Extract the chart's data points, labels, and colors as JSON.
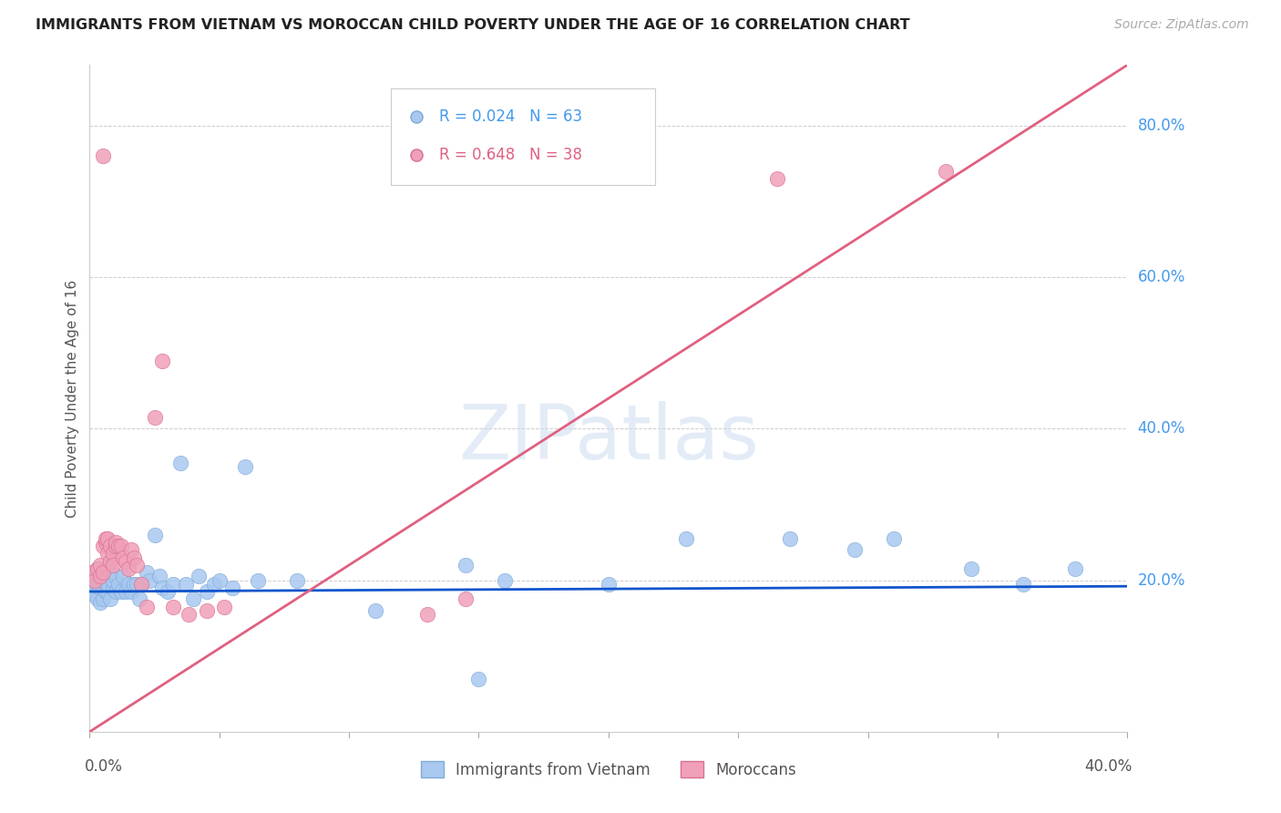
{
  "title": "IMMIGRANTS FROM VIETNAM VS MOROCCAN CHILD POVERTY UNDER THE AGE OF 16 CORRELATION CHART",
  "source": "Source: ZipAtlas.com",
  "ylabel": "Child Poverty Under the Age of 16",
  "ytick_values": [
    0.0,
    0.2,
    0.4,
    0.6,
    0.8
  ],
  "ytick_labels": [
    "",
    "20.0%",
    "40.0%",
    "60.0%",
    "80.0%"
  ],
  "xlim": [
    0.0,
    0.4
  ],
  "ylim": [
    0.0,
    0.88
  ],
  "grid_color": "#cccccc",
  "watermark_text": "ZIPatlas",
  "R_blue": 0.024,
  "N_blue": 63,
  "R_pink": 0.648,
  "N_pink": 38,
  "blue_scatter_color": "#a8c8f0",
  "blue_edge_color": "#80aad8",
  "pink_scatter_color": "#f0a0b8",
  "pink_edge_color": "#d87090",
  "blue_trend_color": "#1155cc",
  "pink_trend_color": "#e06080",
  "pink_trend_x0": 0.0,
  "pink_trend_y0": 0.0,
  "pink_trend_x1": 0.4,
  "pink_trend_y1": 0.88,
  "blue_trend_x0": 0.0,
  "blue_trend_y0": 0.185,
  "blue_trend_x1": 0.4,
  "blue_trend_y1": 0.192,
  "blue_x": [
    0.001,
    0.002,
    0.002,
    0.003,
    0.003,
    0.003,
    0.004,
    0.004,
    0.004,
    0.005,
    0.005,
    0.005,
    0.006,
    0.006,
    0.006,
    0.007,
    0.007,
    0.008,
    0.008,
    0.009,
    0.009,
    0.01,
    0.01,
    0.011,
    0.012,
    0.013,
    0.014,
    0.015,
    0.016,
    0.017,
    0.018,
    0.019,
    0.02,
    0.022,
    0.023,
    0.025,
    0.027,
    0.028,
    0.03,
    0.032,
    0.035,
    0.037,
    0.04,
    0.042,
    0.045,
    0.048,
    0.05,
    0.055,
    0.06,
    0.065,
    0.08,
    0.11,
    0.145,
    0.16,
    0.2,
    0.23,
    0.27,
    0.295,
    0.31,
    0.34,
    0.36,
    0.38,
    0.15
  ],
  "blue_y": [
    0.195,
    0.18,
    0.2,
    0.175,
    0.195,
    0.215,
    0.17,
    0.19,
    0.21,
    0.175,
    0.19,
    0.2,
    0.185,
    0.2,
    0.215,
    0.185,
    0.195,
    0.175,
    0.215,
    0.19,
    0.2,
    0.185,
    0.205,
    0.195,
    0.185,
    0.205,
    0.185,
    0.195,
    0.185,
    0.195,
    0.195,
    0.175,
    0.195,
    0.21,
    0.2,
    0.26,
    0.205,
    0.19,
    0.185,
    0.195,
    0.355,
    0.195,
    0.175,
    0.205,
    0.185,
    0.195,
    0.2,
    0.19,
    0.35,
    0.2,
    0.2,
    0.16,
    0.22,
    0.2,
    0.195,
    0.255,
    0.255,
    0.24,
    0.255,
    0.215,
    0.195,
    0.215,
    0.07
  ],
  "pink_x": [
    0.001,
    0.002,
    0.003,
    0.004,
    0.004,
    0.005,
    0.005,
    0.006,
    0.006,
    0.007,
    0.007,
    0.008,
    0.008,
    0.009,
    0.009,
    0.01,
    0.01,
    0.011,
    0.012,
    0.013,
    0.014,
    0.015,
    0.016,
    0.017,
    0.018,
    0.02,
    0.022,
    0.025,
    0.028,
    0.032,
    0.038,
    0.045,
    0.052,
    0.13,
    0.145,
    0.265,
    0.33,
    0.005
  ],
  "pink_y": [
    0.21,
    0.2,
    0.215,
    0.205,
    0.22,
    0.245,
    0.21,
    0.25,
    0.255,
    0.255,
    0.235,
    0.245,
    0.225,
    0.235,
    0.22,
    0.245,
    0.25,
    0.245,
    0.245,
    0.23,
    0.225,
    0.215,
    0.24,
    0.23,
    0.22,
    0.195,
    0.165,
    0.415,
    0.49,
    0.165,
    0.155,
    0.16,
    0.165,
    0.155,
    0.175,
    0.73,
    0.74,
    0.76
  ]
}
